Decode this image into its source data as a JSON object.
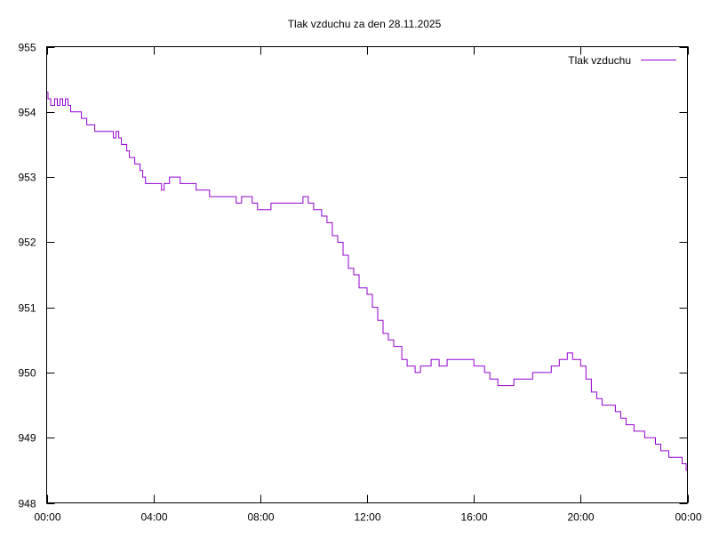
{
  "chart_data": {
    "type": "line",
    "title": "Tlak vzduchu za den 28.11.2025",
    "xlabel": "",
    "ylabel": "",
    "xlim": [
      0,
      24
    ],
    "ylim": [
      948,
      955
    ],
    "grid": false,
    "legend_position": "top-right",
    "x_ticks": [
      {
        "value": 0,
        "label": "00:00"
      },
      {
        "value": 4,
        "label": "04:00"
      },
      {
        "value": 8,
        "label": "08:00"
      },
      {
        "value": 12,
        "label": "12:00"
      },
      {
        "value": 16,
        "label": "16:00"
      },
      {
        "value": 20,
        "label": "20:00"
      },
      {
        "value": 24,
        "label": "00:00"
      }
    ],
    "y_ticks": [
      {
        "value": 948,
        "label": "948"
      },
      {
        "value": 949,
        "label": "949"
      },
      {
        "value": 950,
        "label": "950"
      },
      {
        "value": 951,
        "label": "951"
      },
      {
        "value": 952,
        "label": "952"
      },
      {
        "value": 953,
        "label": "953"
      },
      {
        "value": 954,
        "label": "954"
      },
      {
        "value": 955,
        "label": "955"
      }
    ],
    "series": [
      {
        "name": "Tlak vzduchu",
        "color": "#9400d3",
        "x": [
          0,
          0.05,
          0.15,
          0.3,
          0.4,
          0.5,
          0.6,
          0.7,
          0.8,
          0.9,
          1.0,
          1.3,
          1.5,
          1.8,
          2.2,
          2.5,
          2.6,
          2.7,
          2.8,
          3.0,
          3.1,
          3.3,
          3.5,
          3.6,
          3.7,
          4.2,
          4.3,
          4.4,
          4.6,
          5.0,
          5.5,
          5.6,
          5.8,
          6.0,
          6.1,
          6.2,
          6.5,
          7.0,
          7.1,
          7.3,
          7.7,
          7.9,
          8.2,
          8.4,
          8.6,
          9.0,
          9.5,
          9.6,
          9.8,
          10.0,
          10.3,
          10.5,
          10.7,
          10.9,
          11.1,
          11.3,
          11.5,
          11.7,
          12.0,
          12.2,
          12.4,
          12.6,
          12.8,
          13.0,
          13.3,
          13.5,
          13.8,
          14.0,
          14.4,
          14.7,
          15.0,
          15.3,
          15.6,
          16.0,
          16.4,
          16.6,
          16.9,
          17.3,
          17.5,
          17.8,
          18.2,
          18.5,
          18.9,
          19.2,
          19.5,
          19.7,
          20.0,
          20.2,
          20.4,
          20.6,
          20.8,
          21.1,
          21.3,
          21.5,
          21.7,
          22.0,
          22.4,
          22.8,
          23.0,
          23.3,
          23.6,
          23.8,
          23.95
        ],
        "y": [
          954.3,
          954.2,
          954.1,
          954.2,
          954.1,
          954.2,
          954.1,
          954.2,
          954.1,
          954.0,
          954.0,
          953.9,
          953.8,
          953.7,
          953.7,
          953.6,
          953.7,
          953.6,
          953.5,
          953.4,
          953.3,
          953.2,
          953.1,
          953.0,
          952.9,
          952.9,
          952.8,
          952.9,
          953.0,
          952.9,
          952.9,
          952.8,
          952.8,
          952.8,
          952.7,
          952.7,
          952.7,
          952.7,
          952.6,
          952.7,
          952.6,
          952.5,
          952.5,
          952.6,
          952.6,
          952.6,
          952.6,
          952.7,
          952.6,
          952.5,
          952.4,
          952.3,
          952.1,
          952.0,
          951.8,
          951.6,
          951.5,
          951.3,
          951.2,
          951.0,
          950.8,
          950.6,
          950.5,
          950.4,
          950.2,
          950.1,
          950.0,
          950.1,
          950.2,
          950.1,
          950.2,
          950.2,
          950.2,
          950.1,
          950.0,
          949.9,
          949.8,
          949.8,
          949.9,
          949.9,
          950.0,
          950.0,
          950.1,
          950.2,
          950.3,
          950.2,
          950.1,
          949.9,
          949.7,
          949.6,
          949.5,
          949.5,
          949.4,
          949.3,
          949.2,
          949.1,
          949.0,
          948.9,
          948.8,
          948.7,
          948.7,
          948.6,
          948.5
        ]
      }
    ]
  }
}
